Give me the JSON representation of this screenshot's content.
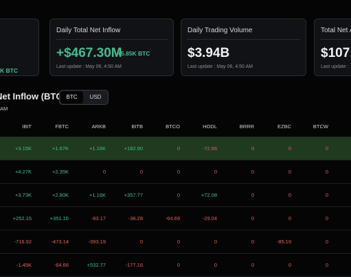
{
  "cards": [
    {
      "sub": "K BTC"
    },
    {
      "title": "Daily Total Net Inflow",
      "value": "+$467.30M",
      "sub": "+5.85K BTC",
      "update": "Last update : May 06, 4:50 AM"
    },
    {
      "title": "Daily Trading Volume",
      "value": "$3.94B",
      "update": "Last update : May 06, 4:50 AM"
    },
    {
      "title": "Total Net A",
      "value": "$107",
      "update": "Last update :"
    }
  ],
  "section": {
    "title": "Net Inflow (BTC)",
    "toggle": [
      "BTC",
      "USD"
    ],
    "note": "AM"
  },
  "table": {
    "columns": [
      "IBIT",
      "FBTC",
      "ARKB",
      "BITB",
      "BTCO",
      "HODL",
      "BRRR",
      "EZBC",
      "BTCW"
    ],
    "rows": [
      [
        "+3.15K",
        "+1.67K",
        "+1.16K",
        "+182.90",
        "0",
        "-72.66",
        "0",
        "0",
        "0"
      ],
      [
        "+4.27K",
        "+2.35K",
        "0",
        "0",
        "0",
        "0",
        "0",
        "0",
        "0"
      ],
      [
        "+3.73K",
        "+2.80K",
        "+1.16K",
        "+357.77",
        "0",
        "+72.08",
        "0",
        "0",
        "0"
      ],
      [
        "+252.15",
        "+351.16",
        "-83.17",
        "-38.28",
        "-64.69",
        "-29.04",
        "0",
        "0",
        "0"
      ],
      [
        "-716.92",
        "-473.14",
        "-393.19",
        "0",
        "0",
        "0",
        "0",
        "-85.19",
        "0"
      ],
      [
        "-1.45K",
        "-64.66",
        "+532.77",
        "-177.16",
        "0",
        "0",
        "0",
        "0",
        "0"
      ]
    ]
  }
}
